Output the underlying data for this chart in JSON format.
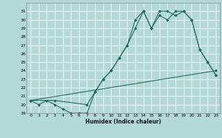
{
  "xlabel": "Humidex (Indice chaleur)",
  "background_color": "#b2d8d8",
  "line_color": "#1a6b5a",
  "grid_color": "#ffffff",
  "xlim": [
    -0.5,
    23.5
  ],
  "ylim": [
    19,
    32
  ],
  "yticks": [
    19,
    20,
    21,
    22,
    23,
    24,
    25,
    26,
    27,
    28,
    29,
    30,
    31
  ],
  "xticks": [
    0,
    1,
    2,
    3,
    4,
    5,
    6,
    7,
    8,
    9,
    10,
    11,
    12,
    13,
    14,
    15,
    16,
    17,
    18,
    19,
    20,
    21,
    22,
    23
  ],
  "line1_x": [
    0,
    1,
    2,
    3,
    4,
    5,
    6,
    7,
    8,
    9,
    10,
    11,
    12,
    13,
    14,
    15,
    16,
    17,
    18,
    19,
    20,
    21,
    22,
    23
  ],
  "line1_y": [
    20.5,
    20.0,
    20.5,
    20.0,
    19.5,
    19.0,
    19.0,
    19.0,
    21.5,
    23.0,
    24.0,
    25.5,
    27.0,
    30.0,
    31.0,
    29.0,
    31.0,
    31.0,
    30.5,
    31.0,
    30.0,
    26.5,
    25.0,
    23.5
  ],
  "line2_x": [
    0,
    3,
    7,
    8,
    9,
    10,
    11,
    12,
    13,
    14,
    15,
    16,
    17,
    18,
    19,
    20,
    21,
    22,
    23
  ],
  "line2_y": [
    20.5,
    20.5,
    20.0,
    21.5,
    23.0,
    24.0,
    25.5,
    27.0,
    29.0,
    31.0,
    29.0,
    30.5,
    30.0,
    31.0,
    31.0,
    30.0,
    26.5,
    25.0,
    23.5
  ],
  "line3_x": [
    0,
    23
  ],
  "line3_y": [
    20.5,
    24.0
  ]
}
